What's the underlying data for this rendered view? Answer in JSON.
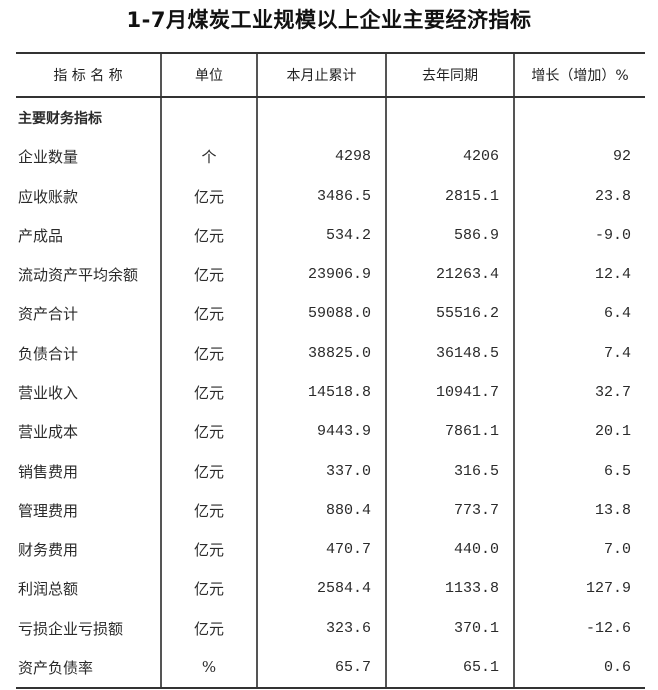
{
  "title": "1-7月煤炭工业规模以上企业主要经济指标",
  "columns": [
    "指 标 名 称",
    "单位",
    "本月止累计",
    "去年同期",
    "增长（增加）%"
  ],
  "section": "主要财务指标",
  "rows": [
    [
      "企业数量",
      "个",
      "4298",
      "4206",
      "92"
    ],
    [
      "应收账款",
      "亿元",
      "3486.5",
      "2815.1",
      "23.8"
    ],
    [
      "产成品",
      "亿元",
      "534.2",
      "586.9",
      "-9.0"
    ],
    [
      "流动资产平均余额",
      "亿元",
      "23906.9",
      "21263.4",
      "12.4"
    ],
    [
      "资产合计",
      "亿元",
      "59088.0",
      "55516.2",
      "6.4"
    ],
    [
      "负债合计",
      "亿元",
      "38825.0",
      "36148.5",
      "7.4"
    ],
    [
      "营业收入",
      "亿元",
      "14518.8",
      "10941.7",
      "32.7"
    ],
    [
      "营业成本",
      "亿元",
      "9443.9",
      "7861.1",
      "20.1"
    ],
    [
      "销售费用",
      "亿元",
      "337.0",
      "316.5",
      "6.5"
    ],
    [
      "管理费用",
      "亿元",
      "880.4",
      "773.7",
      "13.8"
    ],
    [
      "财务费用",
      "亿元",
      "470.7",
      "440.0",
      "7.0"
    ],
    [
      "利润总额",
      "亿元",
      "2584.4",
      "1133.8",
      "127.9"
    ],
    [
      "亏损企业亏损额",
      "亿元",
      "323.6",
      "370.1",
      "-12.6"
    ],
    [
      "资产负债率",
      "%",
      "65.7",
      "65.1",
      "0.6"
    ]
  ]
}
